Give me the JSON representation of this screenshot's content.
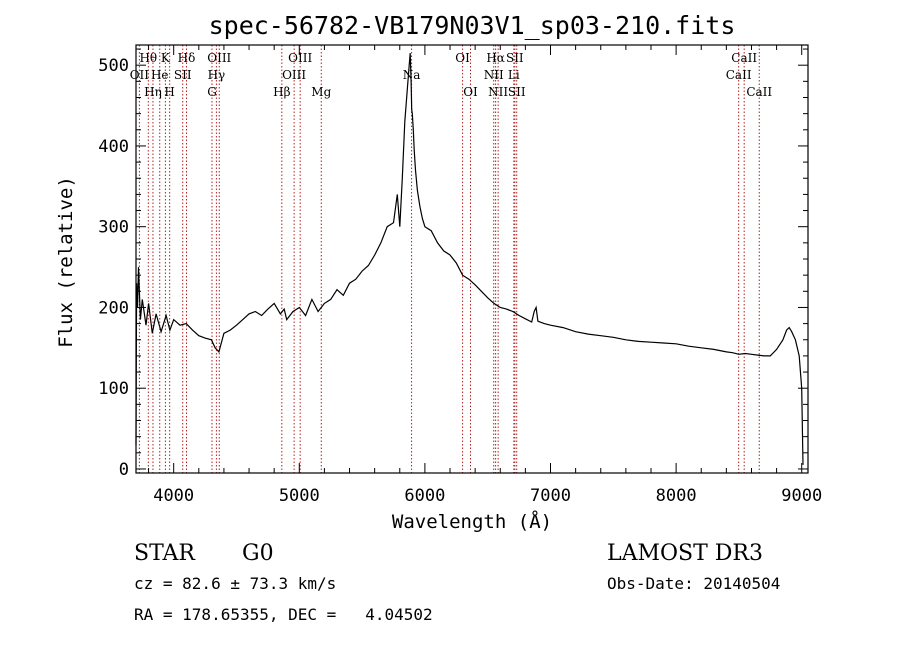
{
  "chart_data": {
    "type": "line",
    "title": "spec-56782-VB179N03V1_sp03-210.fits",
    "xlabel": "Wavelength (Å)",
    "ylabel": "Flux (relative)",
    "xlim": [
      3700,
      9050
    ],
    "ylim": [
      -5,
      525
    ],
    "x_ticks": [
      4000,
      5000,
      6000,
      7000,
      8000,
      9000
    ],
    "y_ticks": [
      0,
      100,
      200,
      300,
      400,
      500
    ],
    "series": [
      {
        "name": "spectrum",
        "x": [
          3700,
          3705,
          3712,
          3720,
          3735,
          3750,
          3780,
          3800,
          3830,
          3860,
          3900,
          3940,
          3970,
          4000,
          4050,
          4100,
          4150,
          4200,
          4250,
          4300,
          4330,
          4360,
          4400,
          4450,
          4500,
          4550,
          4600,
          4650,
          4700,
          4750,
          4800,
          4850,
          4880,
          4900,
          4950,
          5000,
          5050,
          5100,
          5150,
          5200,
          5250,
          5300,
          5350,
          5400,
          5450,
          5500,
          5550,
          5600,
          5650,
          5700,
          5750,
          5780,
          5800,
          5820,
          5840,
          5860,
          5875,
          5883,
          5890,
          5895,
          5900,
          5908,
          5915,
          5925,
          5940,
          5960,
          5980,
          6000,
          6050,
          6100,
          6150,
          6200,
          6250,
          6300,
          6350,
          6400,
          6450,
          6500,
          6550,
          6600,
          6650,
          6700,
          6750,
          6800,
          6850,
          6870,
          6885,
          6900,
          6950,
          7000,
          7100,
          7200,
          7300,
          7400,
          7500,
          7600,
          7700,
          7800,
          7900,
          8000,
          8100,
          8200,
          8300,
          8400,
          8450,
          8500,
          8550,
          8600,
          8650,
          8700,
          8750,
          8800,
          8850,
          8880,
          8900,
          8920,
          8950,
          8980,
          9000,
          9010
        ],
        "values": [
          30,
          230,
          200,
          250,
          185,
          210,
          178,
          205,
          168,
          192,
          170,
          190,
          172,
          185,
          178,
          180,
          172,
          165,
          162,
          160,
          150,
          145,
          168,
          172,
          178,
          185,
          192,
          195,
          190,
          198,
          205,
          192,
          198,
          185,
          195,
          200,
          190,
          210,
          195,
          205,
          210,
          222,
          215,
          230,
          235,
          245,
          252,
          265,
          280,
          300,
          305,
          340,
          300,
          360,
          430,
          470,
          500,
          515,
          480,
          445,
          440,
          420,
          395,
          370,
          345,
          325,
          310,
          300,
          295,
          280,
          270,
          265,
          255,
          240,
          235,
          228,
          220,
          212,
          205,
          200,
          198,
          195,
          190,
          186,
          182,
          195,
          200,
          183,
          180,
          178,
          175,
          170,
          167,
          165,
          163,
          160,
          158,
          157,
          156,
          155,
          152,
          150,
          148,
          145,
          144,
          142,
          143,
          142,
          141,
          140,
          140,
          148,
          160,
          172,
          175,
          170,
          160,
          140,
          100,
          5
        ]
      }
    ],
    "line_markers": [
      {
        "label": "OII",
        "wavelength": 3727,
        "row": 2
      },
      {
        "label": "Hθ",
        "wavelength": 3798,
        "row": 1
      },
      {
        "label": "Hη",
        "wavelength": 3835,
        "row": 3
      },
      {
        "label": "He",
        "wavelength": 3889,
        "row": 2
      },
      {
        "label": "K",
        "wavelength": 3934,
        "row": 1
      },
      {
        "label": "H",
        "wavelength": 3968,
        "row": 3
      },
      {
        "label": "SII",
        "wavelength": 4072,
        "row": 2
      },
      {
        "label": "Hδ",
        "wavelength": 4102,
        "row": 1
      },
      {
        "label": "G",
        "wavelength": 4305,
        "row": 3
      },
      {
        "label": "Hγ",
        "wavelength": 4340,
        "row": 2
      },
      {
        "label": "OIII",
        "wavelength": 4363,
        "row": 1
      },
      {
        "label": "Hβ",
        "wavelength": 4861,
        "row": 3
      },
      {
        "label": "OIII",
        "wavelength": 4959,
        "row": 2
      },
      {
        "label": "OIII",
        "wavelength": 5007,
        "row": 1
      },
      {
        "label": "Mg",
        "wavelength": 5175,
        "row": 3
      },
      {
        "label": "Na",
        "wavelength": 5894,
        "row": 2
      },
      {
        "label": "OI",
        "wavelength": 6300,
        "row": 1
      },
      {
        "label": "OI",
        "wavelength": 6363,
        "row": 3
      },
      {
        "label": "NII",
        "wavelength": 6548,
        "row": 2
      },
      {
        "label": "Hα",
        "wavelength": 6563,
        "row": 1
      },
      {
        "label": "NII",
        "wavelength": 6583,
        "row": 3
      },
      {
        "label": "Li",
        "wavelength": 6708,
        "row": 2
      },
      {
        "label": "SII",
        "wavelength": 6716,
        "row": 1
      },
      {
        "label": "SII",
        "wavelength": 6731,
        "row": 3
      },
      {
        "label": "CaII",
        "wavelength": 8498,
        "row": 2
      },
      {
        "label": "CaII",
        "wavelength": 8542,
        "row": 1
      },
      {
        "label": "CaII",
        "wavelength": 8662,
        "row": 3
      }
    ]
  },
  "info": {
    "class_label": "STAR",
    "subclass": "G0",
    "survey": "LAMOST DR3",
    "redshift_line": "cz = 82.6 ± 73.3 km/s",
    "obs_date": "Obs-Date: 20140504",
    "coords": "RA = 178.65355, DEC =   4.04502"
  },
  "colors": {
    "line_marker": "#b22222",
    "spectrum": "#000000"
  }
}
